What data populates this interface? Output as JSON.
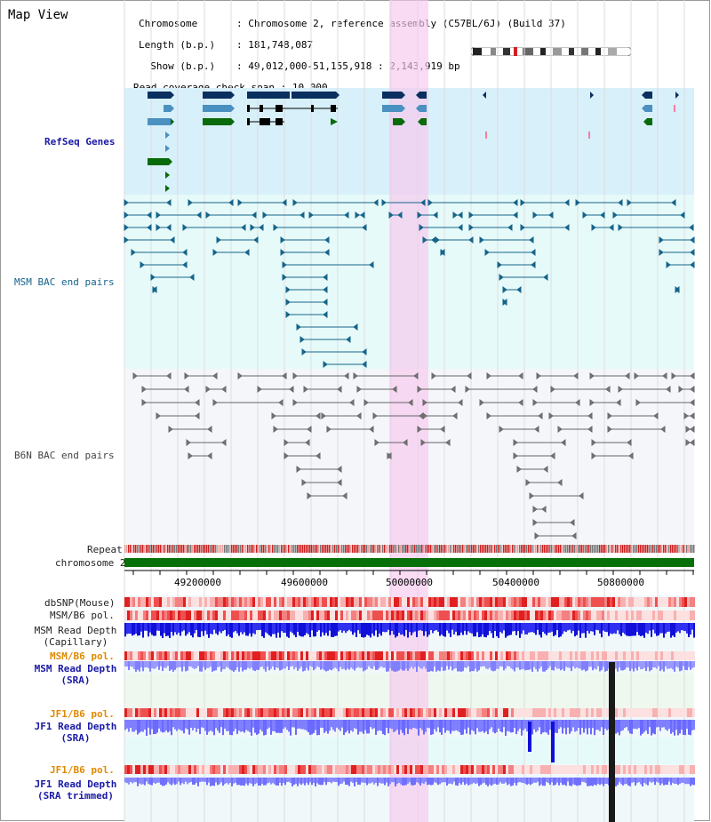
{
  "title": "Map View",
  "info": {
    "chromosome_key": "Chromosome",
    "chromosome_val": "Chromosome 2, reference assembly (C57BL/6J) (Build 37)",
    "length_key": "Length (b.p.)",
    "length_val": "181,748,087",
    "show_key": "  Show (b.p.)",
    "show_val": "49,012,000-51,155,918 : 2,143,919 bp",
    "span_key": "Read coverage check span",
    "span_val": "10,000"
  },
  "tracks": {
    "refseq": "RefSeq Genes",
    "msm_bac": "MSM BAC end pairs",
    "b6n_bac": "B6N BAC end pairs",
    "repeat": "Repeat",
    "chromosome": "chromosome 2",
    "dbsnp": "dbSNP(Mouse)",
    "msm_b6_pol": "MSM/B6 pol.",
    "msm_depth_cap_1": "MSM Read Depth",
    "msm_depth_cap_2": "(Capillary)",
    "msm_b6_pol_2": "MSM/B6 pol.",
    "msm_depth_sra_1": "MSM Read Depth",
    "msm_depth_sra_2": "(SRA)",
    "jf1_b6_pol": "JF1/B6 pol.",
    "jf1_depth_sra_1": "JF1 Read Depth",
    "jf1_depth_sra_2": "(SRA)",
    "jf1_b6_pol_2": "JF1/B6 pol.",
    "jf1_depth_trim_1": "JF1 Read Depth",
    "jf1_depth_trim_2": "(SRA trimmed)"
  },
  "axis_ticks": [
    "49200000",
    "49600000",
    "50000000",
    "50400000",
    "50800000"
  ],
  "colors": {
    "refseq_bg": "#d8f0fa",
    "msm_bg": "#e6fafa",
    "b6n_bg": "#f4f6fa",
    "highlight": "#f8d8f0",
    "chromosome_bar": "#087008",
    "gene_dark": "#0a3060",
    "gene_mid": "#4a90c0",
    "gene_green": "#086a08",
    "depth_blue": "#1818e0",
    "depth_light": "#7a7aff"
  }
}
